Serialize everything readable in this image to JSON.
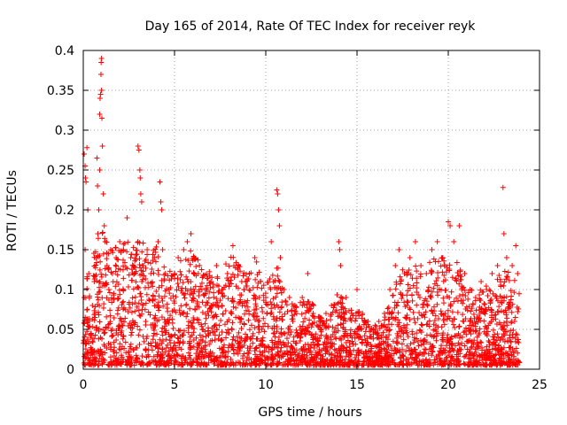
{
  "chart_data": {
    "type": "scatter",
    "title": "Day 165 of 2014, Rate Of TEC Index for receiver reyk",
    "xlabel": "GPS time / hours",
    "ylabel": "ROTI / TECUs",
    "xlim": [
      0,
      25
    ],
    "ylim": [
      0,
      0.4
    ],
    "xticks": [
      0,
      5,
      10,
      15,
      20,
      25
    ],
    "xtick_labels": [
      "0",
      "5",
      "10",
      "15",
      "20",
      "25"
    ],
    "yticks": [
      0,
      0.05,
      0.1,
      0.15,
      0.2,
      0.25,
      0.3,
      0.35,
      0.4
    ],
    "ytick_labels": [
      "0",
      "0.05",
      "0.1",
      "0.15",
      "0.2",
      "0.25",
      "0.3",
      "0.35",
      "0.4"
    ],
    "grid": true,
    "marker": "+",
    "color": "#ff0000",
    "series": [
      {
        "points": [
          [
            0.05,
            0.27
          ],
          [
            0.1,
            0.255
          ],
          [
            0.12,
            0.24
          ],
          [
            0.15,
            0.235
          ],
          [
            0.2,
            0.278
          ],
          [
            0.25,
            0.2
          ],
          [
            0.1,
            0.15
          ],
          [
            0.3,
            0.12
          ],
          [
            0.05,
            0.09
          ],
          [
            0.2,
            0.06
          ],
          [
            0.4,
            0.04
          ],
          [
            0.5,
            0.08
          ],
          [
            0.6,
            0.11
          ],
          [
            0.7,
            0.14
          ],
          [
            0.8,
            0.17
          ],
          [
            0.85,
            0.2
          ],
          [
            0.9,
            0.32
          ],
          [
            0.92,
            0.34
          ],
          [
            0.95,
            0.345
          ],
          [
            0.97,
            0.37
          ],
          [
            0.98,
            0.385
          ],
          [
            1.0,
            0.39
          ],
          [
            1.0,
            0.35
          ],
          [
            1.02,
            0.315
          ],
          [
            1.05,
            0.28
          ],
          [
            0.9,
            0.25
          ],
          [
            0.75,
            0.265
          ],
          [
            0.78,
            0.23
          ],
          [
            1.1,
            0.22
          ],
          [
            1.15,
            0.18
          ],
          [
            1.2,
            0.16
          ],
          [
            1.3,
            0.13
          ],
          [
            1.4,
            0.1
          ],
          [
            1.5,
            0.15
          ],
          [
            1.6,
            0.12
          ],
          [
            1.8,
            0.14
          ],
          [
            2.0,
            0.16
          ],
          [
            2.2,
            0.15
          ],
          [
            2.4,
            0.19
          ],
          [
            2.6,
            0.14
          ],
          [
            2.8,
            0.12
          ],
          [
            3.0,
            0.28
          ],
          [
            3.05,
            0.275
          ],
          [
            3.1,
            0.25
          ],
          [
            3.12,
            0.24
          ],
          [
            3.15,
            0.22
          ],
          [
            3.2,
            0.21
          ],
          [
            3.0,
            0.16
          ],
          [
            3.3,
            0.13
          ],
          [
            3.5,
            0.15
          ],
          [
            3.7,
            0.12
          ],
          [
            3.9,
            0.14
          ],
          [
            4.1,
            0.16
          ],
          [
            4.2,
            0.235
          ],
          [
            4.25,
            0.21
          ],
          [
            4.3,
            0.2
          ],
          [
            4.35,
            0.15
          ],
          [
            4.5,
            0.12
          ],
          [
            4.7,
            0.1
          ],
          [
            5.0,
            0.12
          ],
          [
            5.2,
            0.14
          ],
          [
            5.5,
            0.15
          ],
          [
            5.7,
            0.16
          ],
          [
            5.9,
            0.17
          ],
          [
            6.1,
            0.14
          ],
          [
            6.3,
            0.12
          ],
          [
            6.5,
            0.1
          ],
          [
            6.7,
            0.08
          ],
          [
            7.0,
            0.11
          ],
          [
            7.3,
            0.13
          ],
          [
            7.6,
            0.1
          ],
          [
            7.9,
            0.12
          ],
          [
            8.2,
            0.155
          ],
          [
            8.5,
            0.13
          ],
          [
            8.8,
            0.1
          ],
          [
            9.1,
            0.12
          ],
          [
            9.4,
            0.14
          ],
          [
            9.7,
            0.11
          ],
          [
            10.0,
            0.09
          ],
          [
            10.3,
            0.16
          ],
          [
            10.6,
            0.225
          ],
          [
            10.65,
            0.22
          ],
          [
            10.7,
            0.2
          ],
          [
            10.75,
            0.18
          ],
          [
            10.8,
            0.14
          ],
          [
            11.0,
            0.1
          ],
          [
            11.3,
            0.09
          ],
          [
            11.6,
            0.08
          ],
          [
            12.0,
            0.09
          ],
          [
            12.3,
            0.12
          ],
          [
            12.6,
            0.07
          ],
          [
            13.0,
            0.06
          ],
          [
            13.3,
            0.07
          ],
          [
            13.6,
            0.08
          ],
          [
            14.0,
            0.16
          ],
          [
            14.05,
            0.15
          ],
          [
            14.1,
            0.13
          ],
          [
            14.4,
            0.09
          ],
          [
            14.7,
            0.07
          ],
          [
            15.0,
            0.1
          ],
          [
            15.3,
            0.07
          ],
          [
            15.6,
            0.06
          ],
          [
            15.9,
            0.05
          ],
          [
            16.2,
            0.06
          ],
          [
            16.5,
            0.07
          ],
          [
            16.8,
            0.1
          ],
          [
            17.1,
            0.13
          ],
          [
            17.3,
            0.15
          ],
          [
            17.6,
            0.12
          ],
          [
            17.9,
            0.14
          ],
          [
            18.2,
            0.16
          ],
          [
            18.5,
            0.13
          ],
          [
            18.8,
            0.12
          ],
          [
            19.1,
            0.15
          ],
          [
            19.4,
            0.16
          ],
          [
            19.7,
            0.14
          ],
          [
            20.0,
            0.185
          ],
          [
            20.1,
            0.18
          ],
          [
            20.3,
            0.16
          ],
          [
            20.6,
            0.18
          ],
          [
            20.9,
            0.12
          ],
          [
            21.2,
            0.1
          ],
          [
            21.5,
            0.09
          ],
          [
            21.8,
            0.11
          ],
          [
            22.1,
            0.1
          ],
          [
            22.4,
            0.12
          ],
          [
            22.7,
            0.13
          ],
          [
            23.0,
            0.228
          ],
          [
            23.05,
            0.17
          ],
          [
            23.2,
            0.14
          ],
          [
            23.5,
            0.13
          ],
          [
            23.7,
            0.155
          ],
          [
            23.8,
            0.12
          ]
        ]
      }
    ],
    "dense_band": [
      [
        0.0,
        0.11
      ],
      [
        0.5,
        0.14
      ],
      [
        1.0,
        0.17
      ],
      [
        1.5,
        0.15
      ],
      [
        2.0,
        0.16
      ],
      [
        2.5,
        0.16
      ],
      [
        3.0,
        0.16
      ],
      [
        3.5,
        0.15
      ],
      [
        4.0,
        0.15
      ],
      [
        4.5,
        0.12
      ],
      [
        5.0,
        0.12
      ],
      [
        5.5,
        0.14
      ],
      [
        6.0,
        0.15
      ],
      [
        6.5,
        0.12
      ],
      [
        7.0,
        0.12
      ],
      [
        7.5,
        0.12
      ],
      [
        8.0,
        0.14
      ],
      [
        8.5,
        0.13
      ],
      [
        9.0,
        0.12
      ],
      [
        9.5,
        0.13
      ],
      [
        10.0,
        0.1
      ],
      [
        10.5,
        0.14
      ],
      [
        11.0,
        0.09
      ],
      [
        11.5,
        0.08
      ],
      [
        12.0,
        0.08
      ],
      [
        12.5,
        0.08
      ],
      [
        13.0,
        0.06
      ],
      [
        13.5,
        0.06
      ],
      [
        14.0,
        0.1
      ],
      [
        14.5,
        0.07
      ],
      [
        15.0,
        0.07
      ],
      [
        15.5,
        0.06
      ],
      [
        16.0,
        0.05
      ],
      [
        16.5,
        0.06
      ],
      [
        17.0,
        0.1
      ],
      [
        17.5,
        0.12
      ],
      [
        18.0,
        0.13
      ],
      [
        18.5,
        0.12
      ],
      [
        19.0,
        0.13
      ],
      [
        19.5,
        0.14
      ],
      [
        20.0,
        0.13
      ],
      [
        20.5,
        0.13
      ],
      [
        21.0,
        0.1
      ],
      [
        21.5,
        0.09
      ],
      [
        22.0,
        0.1
      ],
      [
        22.5,
        0.11
      ],
      [
        23.0,
        0.12
      ],
      [
        23.5,
        0.12
      ],
      [
        23.9,
        0.1
      ]
    ]
  }
}
